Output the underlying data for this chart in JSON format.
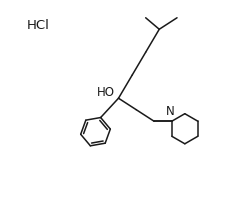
{
  "background_color": "#ffffff",
  "hcl_label": "HCl",
  "ho_label": "HO",
  "n_label": "N",
  "figure_size": [
    2.37,
    2.09
  ],
  "dpi": 100,
  "line_color": "#1a1a1a",
  "line_width": 1.1,
  "font_size_label": 8.5,
  "font_size_hcl": 9.5,
  "xlim": [
    0,
    10
  ],
  "ylim": [
    0,
    10
  ]
}
